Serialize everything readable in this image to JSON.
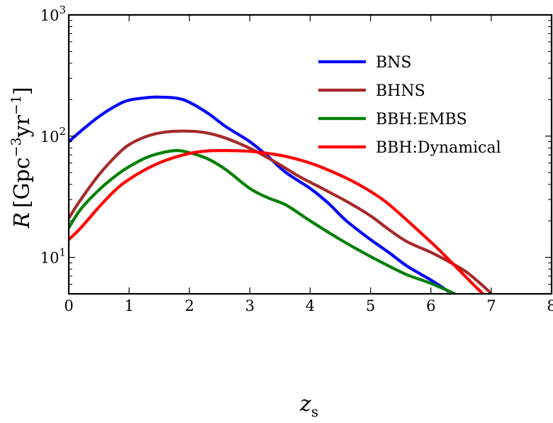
{
  "chart_data": {
    "type": "line",
    "title": "",
    "xlabel": "z_s",
    "xlabel_main": "z",
    "xlabel_sub": "s",
    "ylabel": "R [Gpc^-3 yr^-1]",
    "ylabel_main": "R",
    "ylabel_unit_open": "[Gpc",
    "ylabel_exp1": "−3",
    "ylabel_unit_mid": "yr",
    "ylabel_exp2": "−1",
    "ylabel_unit_close": "]",
    "xlim": [
      0,
      8
    ],
    "ylim": [
      5,
      1000
    ],
    "yscale": "log",
    "grid": false,
    "legend_position": "top-right",
    "x_ticks": [
      0,
      1,
      2,
      3,
      4,
      5,
      6,
      7,
      8
    ],
    "x_tick_labels": [
      "0",
      "1",
      "2",
      "3",
      "4",
      "5",
      "6",
      "7",
      "8"
    ],
    "y_ticks": [
      10,
      100,
      1000
    ],
    "y_tick_base": [
      "10",
      "10",
      "10"
    ],
    "y_tick_exp": [
      "1",
      "2",
      "3"
    ],
    "series": [
      {
        "name": "BNS",
        "color": "#0000ff",
        "x": [
          0,
          0.2,
          0.5,
          0.8,
          1.0,
          1.3,
          1.5,
          1.8,
          2.0,
          2.3,
          2.6,
          3.0,
          3.3,
          3.6,
          4.0,
          4.3,
          4.6,
          5.0,
          5.3,
          5.6,
          6.0,
          6.3
        ],
        "y": [
          90,
          110,
          145,
          180,
          198,
          208,
          210,
          205,
          190,
          155,
          120,
          90,
          68,
          50,
          37,
          28,
          20,
          14,
          11,
          8.5,
          6.5,
          5.2
        ]
      },
      {
        "name": "BHNS",
        "color": "#a52a2a",
        "x": [
          0,
          0.2,
          0.5,
          0.8,
          1.0,
          1.3,
          1.6,
          1.9,
          2.2,
          2.5,
          2.8,
          3.1,
          3.5,
          3.8,
          4.2,
          4.6,
          5.0,
          5.3,
          5.6,
          6.0,
          6.3,
          6.6,
          6.9,
          7.0
        ],
        "y": [
          21,
          30,
          48,
          70,
          85,
          100,
          108,
          110,
          108,
          100,
          88,
          75,
          58,
          47,
          37,
          29,
          22,
          17,
          13.5,
          11,
          9.2,
          7.5,
          5.6,
          5
        ]
      },
      {
        "name": "BBH:EMBS",
        "color": "#008000",
        "x": [
          0,
          0.2,
          0.5,
          0.8,
          1.0,
          1.3,
          1.6,
          1.8,
          2.0,
          2.3,
          2.6,
          3.0,
          3.3,
          3.6,
          4.0,
          4.4,
          4.8,
          5.2,
          5.6,
          6.0,
          6.4
        ],
        "y": [
          17.5,
          25,
          36,
          48,
          56,
          67,
          74,
          76,
          73,
          65,
          53,
          37,
          31,
          27,
          20,
          15,
          11.5,
          9,
          7.2,
          6.1,
          5
        ]
      },
      {
        "name": "BBH:Dynamical",
        "color": "#ff0000",
        "x": [
          0,
          0.2,
          0.5,
          0.8,
          1.0,
          1.3,
          1.6,
          2.0,
          2.3,
          2.6,
          3.0,
          3.3,
          3.6,
          4.0,
          4.4,
          4.8,
          5.2,
          5.5,
          5.8,
          6.1,
          6.4,
          6.7,
          6.9
        ],
        "y": [
          14,
          17.5,
          26,
          37,
          44,
          54,
          63,
          72,
          75.5,
          76,
          75,
          72,
          68,
          60,
          50,
          40,
          30,
          22.5,
          16.5,
          12,
          8.5,
          6,
          4.8
        ]
      }
    ]
  }
}
